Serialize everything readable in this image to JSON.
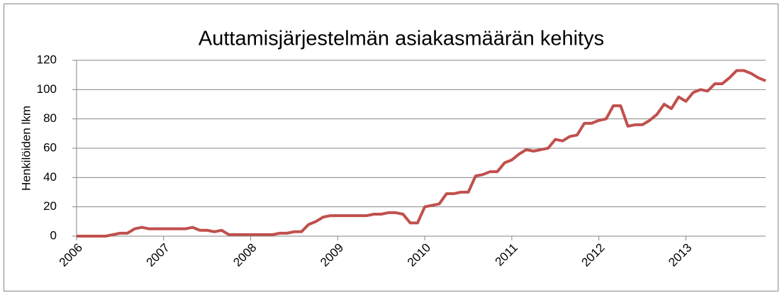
{
  "chart_data": {
    "type": "line",
    "title": "Auttamisjärjestelmän asiakasmäärän kehitys",
    "y_label": "Henkilöiden lkm",
    "categories": [
      "2006",
      null,
      null,
      null,
      null,
      null,
      null,
      null,
      null,
      null,
      null,
      null,
      "2007",
      null,
      null,
      null,
      null,
      null,
      null,
      null,
      null,
      null,
      null,
      null,
      "2008",
      null,
      null,
      null,
      null,
      null,
      null,
      null,
      null,
      null,
      null,
      null,
      "2009",
      null,
      null,
      null,
      null,
      null,
      null,
      null,
      null,
      null,
      null,
      null,
      "2010",
      null,
      null,
      null,
      null,
      null,
      null,
      null,
      null,
      null,
      null,
      null,
      "2011",
      null,
      null,
      null,
      null,
      null,
      null,
      null,
      null,
      null,
      null,
      null,
      "2012",
      null,
      null,
      null,
      null,
      null,
      null,
      null,
      null,
      null,
      null,
      null,
      "2013",
      null,
      null,
      null,
      null,
      null,
      null,
      null,
      null,
      null,
      null,
      null
    ],
    "series": [
      {
        "name": "Henkilöiden lkm",
        "color": "#c0504d",
        "values": [
          0,
          0,
          0,
          0,
          0,
          1,
          2,
          2,
          5,
          6,
          5,
          5,
          5,
          5,
          5,
          5,
          6,
          4,
          4,
          3,
          4,
          1,
          1,
          1,
          1,
          1,
          1,
          1,
          2,
          2,
          3,
          3,
          8,
          10,
          13,
          14,
          14,
          14,
          14,
          14,
          14,
          15,
          15,
          16,
          16,
          15,
          9,
          9,
          20,
          21,
          22,
          29,
          29,
          30,
          30,
          41,
          42,
          44,
          44,
          50,
          52,
          56,
          59,
          58,
          59,
          60,
          66,
          65,
          68,
          69,
          77,
          77,
          79,
          80,
          89,
          89,
          75,
          76,
          76,
          79,
          83,
          90,
          87,
          95,
          92,
          98,
          100,
          99,
          104,
          104,
          108,
          113,
          113,
          111,
          108,
          106
        ]
      }
    ],
    "ylim": [
      0,
      120
    ],
    "yticks": [
      0,
      20,
      40,
      60,
      80,
      100,
      120
    ],
    "grid": true
  }
}
